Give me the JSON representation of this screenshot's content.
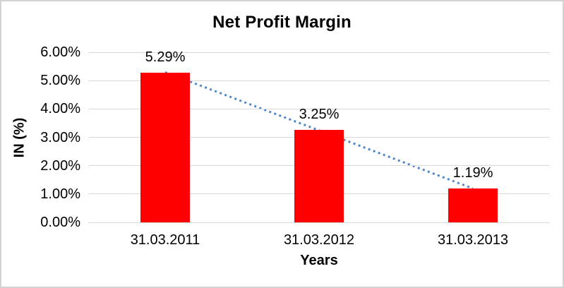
{
  "chart_data": {
    "type": "bar",
    "title": "Net Profit Margin",
    "xlabel": "Years",
    "ylabel": "IN (%)",
    "categories": [
      "31.03.2011",
      "31.03.2012",
      "31.03.2013"
    ],
    "values": [
      5.29,
      3.25,
      1.19
    ],
    "data_labels": [
      "5.29%",
      "3.25%",
      "1.19%"
    ],
    "ylim": [
      0,
      6
    ],
    "ytick_step": 1,
    "ytick_labels": [
      "0.00%",
      "1.00%",
      "2.00%",
      "3.00%",
      "4.00%",
      "5.00%",
      "6.00%"
    ],
    "grid": true,
    "legend": "none",
    "bar_color": "#ff0000",
    "gridline_color": "#d9d9d9",
    "text_color": "#000000",
    "trendline": {
      "type": "linear",
      "style": "dotted",
      "color": "#4e87c8"
    }
  }
}
